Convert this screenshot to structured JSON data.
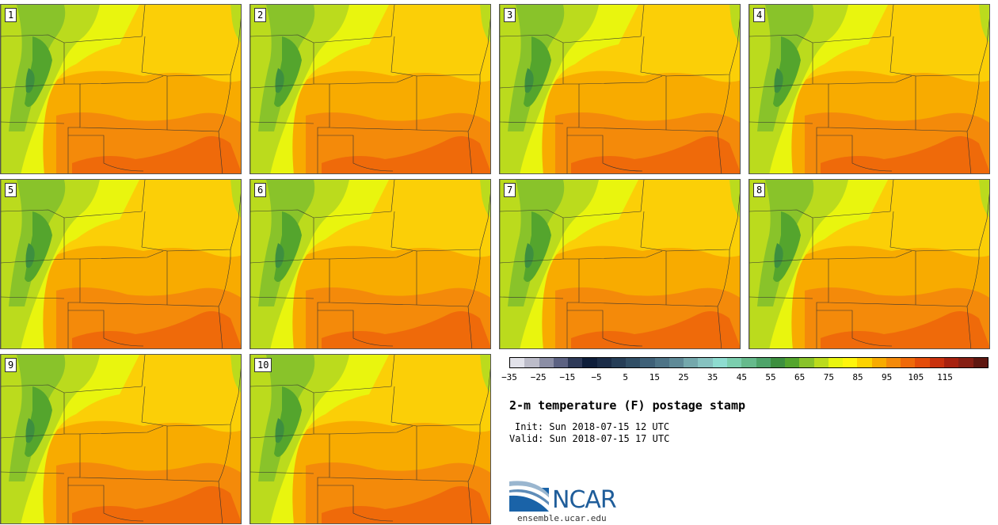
{
  "panels": [
    "1",
    "2",
    "3",
    "4",
    "5",
    "6",
    "7",
    "8",
    "9",
    "10"
  ],
  "colorbar": {
    "colors": [
      "#e2e2ea",
      "#bcbcc9",
      "#8b8ea5",
      "#5c6282",
      "#2e3a58",
      "#0e1e3a",
      "#1b2d48",
      "#263e57",
      "#314f66",
      "#3f6178",
      "#4e7487",
      "#5f8a97",
      "#74a8ac",
      "#86c2c0",
      "#8edcd0",
      "#7bceae",
      "#66ba8c",
      "#4ea46a",
      "#3d8f3f",
      "#54a52d",
      "#89c32a",
      "#bbdb1d",
      "#e9f50e",
      "#fef50c",
      "#fcd200",
      "#f8ab00",
      "#f48a0a",
      "#ef6a0a",
      "#e44d0a",
      "#c9310d",
      "#a7210f",
      "#861f14",
      "#5e1710"
    ],
    "labels": [
      "−35",
      "−25",
      "−15",
      "−5",
      "5",
      "15",
      "25",
      "35",
      "45",
      "55",
      "65",
      "75",
      "85",
      "95",
      "105",
      "115"
    ]
  },
  "title": "2-m temperature (F) postage stamp",
  "init": "Init: Sun 2018-07-15 12 UTC",
  "valid": "Valid: Sun 2018-07-15 17 UTC",
  "logo": {
    "name": "NCAR",
    "url": "ensemble.ucar.edu"
  }
}
